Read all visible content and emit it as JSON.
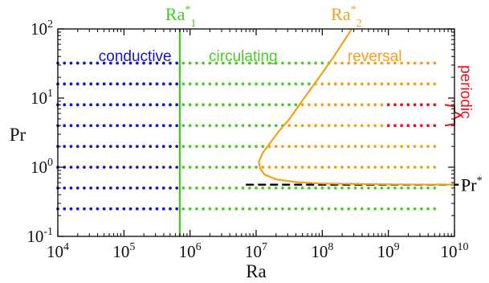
{
  "chart_data": {
    "type": "scatter",
    "xscale": "log",
    "yscale": "log",
    "xlim": [
      10000,
      10000000000
    ],
    "ylim": [
      0.1,
      100
    ],
    "xlabel": "Ra",
    "ylabel": "Pr",
    "x_ticks": [
      {
        "base": "10",
        "exp": "4",
        "value": 10000
      },
      {
        "base": "10",
        "exp": "5",
        "value": 100000
      },
      {
        "base": "10",
        "exp": "6",
        "value": 1000000
      },
      {
        "base": "10",
        "exp": "7",
        "value": 10000000
      },
      {
        "base": "10",
        "exp": "8",
        "value": 100000000
      },
      {
        "base": "10",
        "exp": "9",
        "value": 1000000000
      },
      {
        "base": "10",
        "exp": "10",
        "value": 10000000000
      }
    ],
    "y_ticks": [
      {
        "base": "10",
        "exp": "-1",
        "value": 0.1
      },
      {
        "base": "10",
        "exp": "0",
        "value": 1
      },
      {
        "base": "10",
        "exp": "1",
        "value": 10
      },
      {
        "base": "10",
        "exp": "2",
        "value": 100
      }
    ],
    "colors": {
      "conductive": "#1515c8",
      "circulating": "#4ccc22",
      "reversal": "#f5a018",
      "periodic": "#e8141e",
      "Ra1": "#3ecb1c",
      "Ra2": "#f5a018",
      "Pr": "#000000"
    },
    "regions": [
      {
        "label": "conductive",
        "color_key": "conductive",
        "anchor_ra": 20000,
        "anchor_pr": 40
      },
      {
        "label": "circulating",
        "color_key": "circulating",
        "anchor_ra": 1300000,
        "anchor_pr": 40
      },
      {
        "label": "reversal",
        "color_key": "reversal",
        "anchor_ra": 500000000,
        "anchor_pr": 40
      },
      {
        "label": "periodic",
        "color_key": "periodic",
        "anchor_ra": 14000000000,
        "anchor_pr": 6
      }
    ],
    "grid_pr": [
      0.25,
      0.5,
      1,
      2,
      4,
      8,
      16,
      32
    ],
    "grid_ra_log10": [
      4.0,
      4.1,
      4.2,
      4.3,
      4.4,
      4.5,
      4.6,
      4.7,
      4.8,
      4.9,
      5.0,
      5.1,
      5.2,
      5.3,
      5.4,
      5.5,
      5.6,
      5.7,
      5.8,
      5.9,
      6.0,
      6.1,
      6.2,
      6.3,
      6.4,
      6.5,
      6.6,
      6.7,
      6.8,
      6.9,
      7.0,
      7.1,
      7.2,
      7.3,
      7.4,
      7.5,
      7.6,
      7.7,
      7.8,
      7.9,
      8.0,
      8.1,
      8.2,
      8.3,
      8.4,
      8.5,
      8.6,
      8.7,
      8.8,
      8.9,
      9.0,
      9.1,
      9.2,
      9.3,
      9.4,
      9.5,
      9.6,
      9.7
    ],
    "Ra1_value": 700000,
    "Pr_star": 0.56,
    "Ra2_curve": [
      {
        "ra": 11000000,
        "pr": 1.2
      },
      {
        "ra": 11500000,
        "pr": 0.95
      },
      {
        "ra": 13500000,
        "pr": 0.78
      },
      {
        "ra": 20000000,
        "pr": 0.67
      },
      {
        "ra": 40000000,
        "pr": 0.61
      },
      {
        "ra": 100000000,
        "pr": 0.58
      },
      {
        "ra": 1000000000,
        "pr": 0.565
      },
      {
        "ra": 10000000000,
        "pr": 0.56
      },
      {
        "ra": 12500000,
        "pr": 1.6
      },
      {
        "ra": 16000000,
        "pr": 2.2
      },
      {
        "ra": 22000000,
        "pr": 3.3
      },
      {
        "ra": 32000000,
        "pr": 5
      },
      {
        "ra": 45000000,
        "pr": 8
      },
      {
        "ra": 65000000,
        "pr": 13
      },
      {
        "ra": 100000000,
        "pr": 23
      },
      {
        "ra": 150000000,
        "pr": 40
      },
      {
        "ra": 220000000,
        "pr": 70
      },
      {
        "ra": 280000000,
        "pr": 100
      }
    ],
    "annotations": {
      "Ra1": {
        "text": "Ra",
        "sup": "*",
        "sub": "1"
      },
      "Ra2": {
        "text": "Ra",
        "sup": "*",
        "sub": "2"
      },
      "Pr": {
        "text": "Pr",
        "sup": "*"
      }
    }
  }
}
